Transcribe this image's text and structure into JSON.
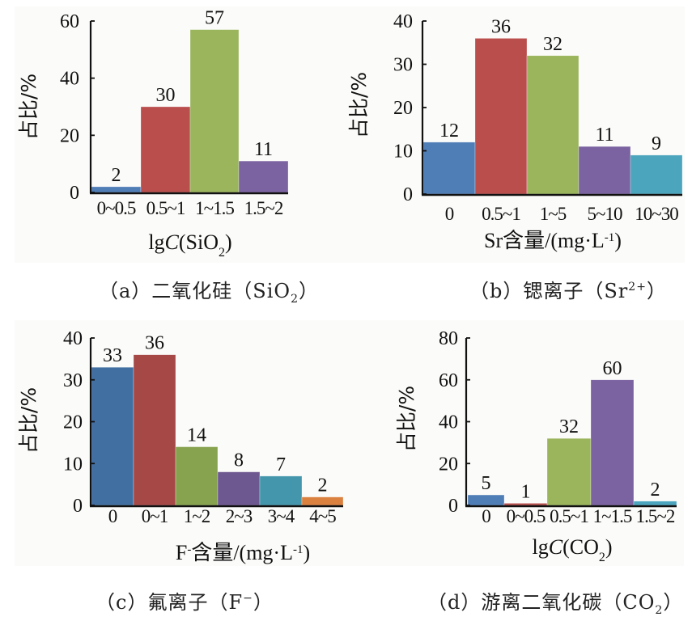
{
  "chart_data": [
    {
      "id": "a",
      "type": "bar",
      "categories": [
        "0~0.5",
        "0.5~1",
        "1~1.5",
        "1.5~2"
      ],
      "values": [
        2,
        30,
        57,
        11
      ],
      "data_labels": [
        "2",
        "30",
        "57",
        "11"
      ],
      "colors": [
        "#4f7db6",
        "#b94e4c",
        "#9ab55b",
        "#7b62a0"
      ],
      "xlabel": "lgC(SiO2)",
      "xlabel_parts": {
        "pre": "lg",
        "italic": "C",
        "mid": "(SiO",
        "sub": "2",
        "post": ")"
      },
      "ylabel": "占比/%",
      "ylim": [
        0,
        60
      ],
      "yticks": [
        0,
        20,
        40,
        60
      ],
      "ytick_labels": [
        "0",
        "20",
        "40",
        "60"
      ],
      "grid": false,
      "caption": {
        "prefix": "（a）二氧化硅（SiO",
        "sub": "2",
        "suffix": "）"
      }
    },
    {
      "id": "b",
      "type": "bar",
      "categories": [
        "0",
        "0.5~1",
        "1~5",
        "5~10",
        "10~30"
      ],
      "values": [
        12,
        36,
        32,
        11,
        9
      ],
      "data_labels": [
        "12",
        "36",
        "32",
        "11",
        "9"
      ],
      "colors": [
        "#4f7db6",
        "#b94e4c",
        "#9ab55b",
        "#7b62a0",
        "#4aa5bd"
      ],
      "xlabel": "Sr含量/(mg·L-1)",
      "xlabel_parts": {
        "pre": "Sr含量/(mg·L",
        "sup": "-1",
        "post": ")"
      },
      "ylabel": "占比/%",
      "ylim": [
        0,
        40
      ],
      "yticks": [
        0,
        10,
        20,
        30,
        40
      ],
      "ytick_labels": [
        "0",
        "10",
        "20",
        "30",
        "40"
      ],
      "grid": false,
      "caption": {
        "prefix": "（b）锶离子（Sr",
        "sup": "2+",
        "suffix": "）"
      }
    },
    {
      "id": "c",
      "type": "bar",
      "categories": [
        "0",
        "0~1",
        "1~2",
        "2~3",
        "3~4",
        "4~5"
      ],
      "values": [
        33,
        36,
        14,
        8,
        7,
        2
      ],
      "data_labels": [
        "33",
        "36",
        "14",
        "8",
        "7",
        "2"
      ],
      "colors": [
        "#416fa2",
        "#a54846",
        "#88a350",
        "#6e5890",
        "#4396ab",
        "#da8140"
      ],
      "xlabel": "F-含量/(mg·L-1)",
      "xlabel_parts": {
        "pre": "F",
        "sup1": "-",
        "mid": "含量/(mg·L",
        "sup": "-1",
        "post": ")"
      },
      "ylabel": "占比/%",
      "ylim": [
        0,
        40
      ],
      "yticks": [
        0,
        10,
        20,
        30,
        40
      ],
      "ytick_labels": [
        "0",
        "10",
        "20",
        "30",
        "40"
      ],
      "grid": false,
      "caption": {
        "prefix": "（c）氟离子（F",
        "sup": "−",
        "suffix": "）"
      }
    },
    {
      "id": "d",
      "type": "bar",
      "categories": [
        "0",
        "0~0.5",
        "0.5~1",
        "1~1.5",
        "1.5~2"
      ],
      "values": [
        5,
        1,
        32,
        60,
        2
      ],
      "data_labels": [
        "5",
        "1",
        "32",
        "60",
        "2"
      ],
      "colors": [
        "#4f7db6",
        "#b94e4c",
        "#9ab55b",
        "#7b62a0",
        "#4aa5bd"
      ],
      "xlabel": "lgC(CO2)",
      "xlabel_parts": {
        "pre": "lg",
        "italic": "C",
        "mid": "(CO",
        "sub": "2",
        "post": ")"
      },
      "ylabel": "占比/%",
      "ylim": [
        0,
        80
      ],
      "yticks": [
        0,
        20,
        40,
        60,
        80
      ],
      "ytick_labels": [
        "0",
        "20",
        "40",
        "60",
        "80"
      ],
      "grid": false,
      "caption": {
        "prefix": "（d）游离二氧化碳（CO",
        "sub": "2",
        "suffix": "）"
      }
    }
  ]
}
